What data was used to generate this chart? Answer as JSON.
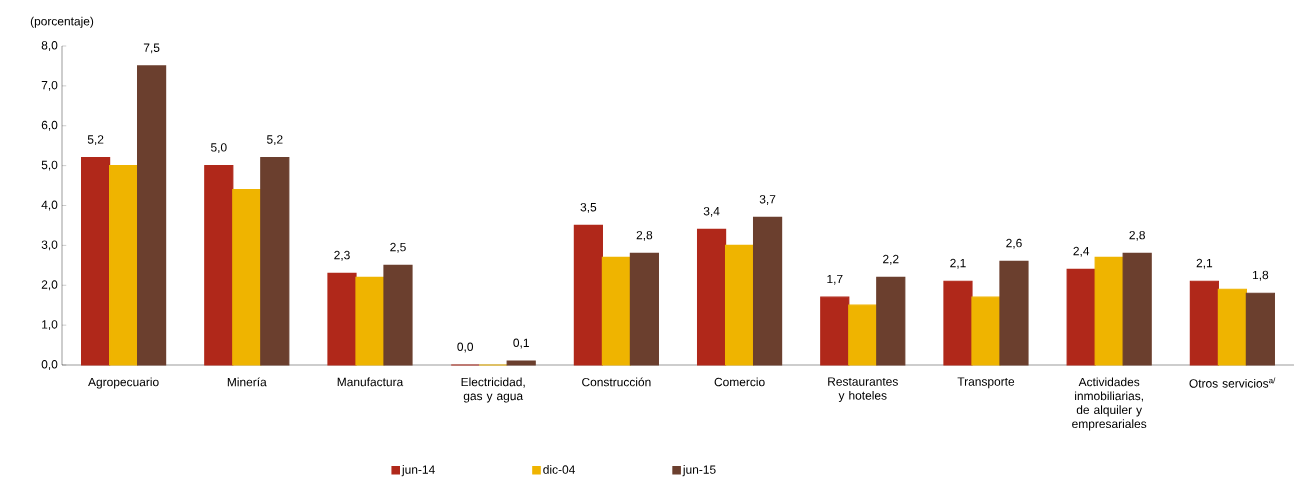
{
  "chart_data": {
    "type": "bar",
    "ylabel": "(porcentaje)",
    "categories": [
      "Agropecuario",
      "Minería",
      "Manufactura",
      "Electricidad, gas y agua",
      "Construcción",
      "Comercio",
      "Restaurantes y hoteles",
      "Transporte",
      "Actividades inmobiliarias, de alquiler y empresariales",
      "Otros servicios$^{a/}$"
    ],
    "series": [
      {
        "name": "jun-14",
        "color": "#b0281a",
        "values": [
          5.2,
          5.0,
          2.3,
          0.0,
          3.5,
          3.4,
          1.7,
          2.1,
          2.4,
          2.1
        ],
        "value_labels": [
          "5,2",
          "5,0",
          "2,3",
          "0,0",
          "3,5",
          "3,4",
          "1,7",
          "2,1",
          "2,4",
          "2,1"
        ]
      },
      {
        "name": "dic-04",
        "color": "#efb400",
        "values": [
          5.0,
          4.4,
          2.2,
          0.0,
          2.7,
          3.0,
          1.5,
          1.7,
          2.7,
          1.9
        ]
      },
      {
        "name": "jun-15",
        "color": "#6b3f2e",
        "values": [
          7.5,
          5.2,
          2.5,
          0.1,
          2.8,
          3.7,
          2.2,
          2.6,
          2.8,
          1.8
        ],
        "value_labels": [
          "7,5",
          "5,2",
          "2,5",
          "0,1",
          "2,8",
          "3,7",
          "2,2",
          "2,6",
          "2,8",
          "1,8"
        ]
      }
    ],
    "ylim": [
      0,
      8
    ],
    "yticks": [
      {
        "value": 0,
        "label": "0,0"
      },
      {
        "value": 1,
        "label": "1,0"
      },
      {
        "value": 2,
        "label": "2,0"
      },
      {
        "value": 3,
        "label": "3,0"
      },
      {
        "value": 4,
        "label": "4,0"
      },
      {
        "value": 5,
        "label": "5,0"
      },
      {
        "value": 6,
        "label": "6,0"
      },
      {
        "value": 7,
        "label": "7,0"
      },
      {
        "value": 8,
        "label": "8,0"
      }
    ],
    "grid": false,
    "legend": "bottom"
  }
}
